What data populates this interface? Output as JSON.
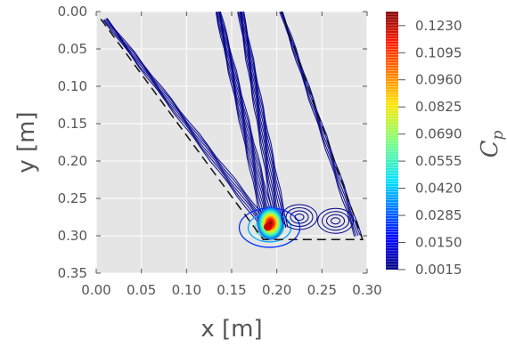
{
  "chart_data": {
    "type": "contour",
    "xlabel": "x [m]",
    "ylabel": "y [m]",
    "xlim": [
      0.0,
      0.3
    ],
    "ylim": [
      0.35,
      0.0
    ],
    "y_inverted": true,
    "xticks": [
      "0.00",
      "0.05",
      "0.10",
      "0.15",
      "0.20",
      "0.25",
      "0.30"
    ],
    "yticks": [
      "0.00",
      "0.05",
      "0.10",
      "0.15",
      "0.20",
      "0.25",
      "0.30",
      "0.35"
    ],
    "grid": true,
    "colorbar": {
      "title": "C_p",
      "colormap": "jet",
      "ticks": [
        "0.0015",
        "0.0150",
        "0.0285",
        "0.0420",
        "0.0555",
        "0.0690",
        "0.0825",
        "0.0960",
        "0.1095",
        "0.1230"
      ],
      "min": 0.0015,
      "max": 0.13
    },
    "outline_dashed": [
      [
        0.005,
        0.01
      ],
      [
        0.185,
        0.305
      ],
      [
        0.295,
        0.305
      ],
      [
        0.205,
        0.0
      ]
    ],
    "hotspot": {
      "x": 0.19,
      "y": 0.288,
      "value": 0.13
    },
    "secondary_peaks": [
      {
        "x": 0.265,
        "y": 0.28
      },
      {
        "x": 0.225,
        "y": 0.275
      }
    ],
    "streaks": [
      {
        "from": [
          0.01,
          0.01
        ],
        "to": [
          0.19,
          0.29
        ]
      },
      {
        "from": [
          0.135,
          0.0
        ],
        "to": [
          0.192,
          0.29
        ]
      },
      {
        "from": [
          0.16,
          0.0
        ],
        "to": [
          0.205,
          0.29
        ]
      },
      {
        "from": [
          0.205,
          0.0
        ],
        "to": [
          0.29,
          0.3
        ]
      }
    ],
    "colors": {
      "background": "#e5e5e5",
      "grid": "#ffffff",
      "contour_low": "#00008b"
    }
  }
}
